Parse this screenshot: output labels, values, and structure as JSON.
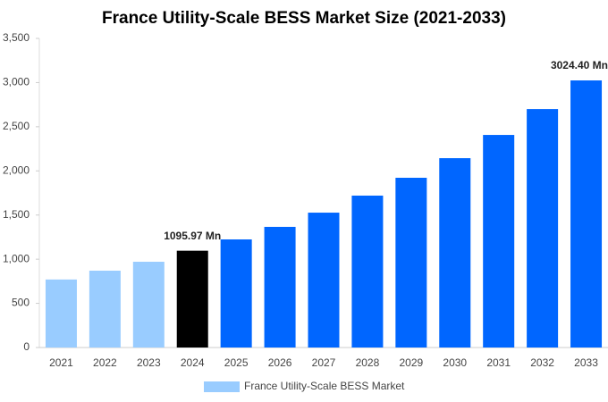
{
  "chart_data": {
    "type": "bar",
    "title": "France Utility-Scale BESS Market Size (2021-2033)",
    "categories": [
      "2021",
      "2022",
      "2023",
      "2024",
      "2025",
      "2026",
      "2027",
      "2028",
      "2029",
      "2030",
      "2031",
      "2032",
      "2033"
    ],
    "series": [
      {
        "name": "France Utility-Scale BESS Market",
        "color": "#99ccff",
        "values": [
          770,
          870,
          971,
          1095.97,
          1224,
          1366,
          1527,
          1720,
          1922,
          2144,
          2407,
          2700,
          3024.4
        ],
        "value_labels": [
          null,
          null,
          null,
          "1095.97 Mn",
          null,
          null,
          null,
          null,
          null,
          null,
          null,
          null,
          "3024.40 Mn"
        ],
        "colors": [
          "#99ccff",
          "#99ccff",
          "#99ccff",
          "#000000",
          "#0066ff",
          "#0066ff",
          "#0066ff",
          "#0066ff",
          "#0066ff",
          "#0066ff",
          "#0066ff",
          "#0066ff",
          "#0066ff"
        ]
      }
    ],
    "ylim": [
      0,
      3500
    ],
    "yticks": [
      0,
      500,
      {
        "value": 1000,
        "label": "1,000"
      },
      {
        "value": 1500,
        "label": "1,500"
      },
      {
        "value": 2000,
        "label": "2,000"
      },
      {
        "value": 2500,
        "label": "2,500"
      },
      {
        "value": 3000,
        "label": "3,000"
      },
      {
        "value": 3500,
        "label": "3,500"
      }
    ],
    "grid": false,
    "legend": "bottom"
  }
}
